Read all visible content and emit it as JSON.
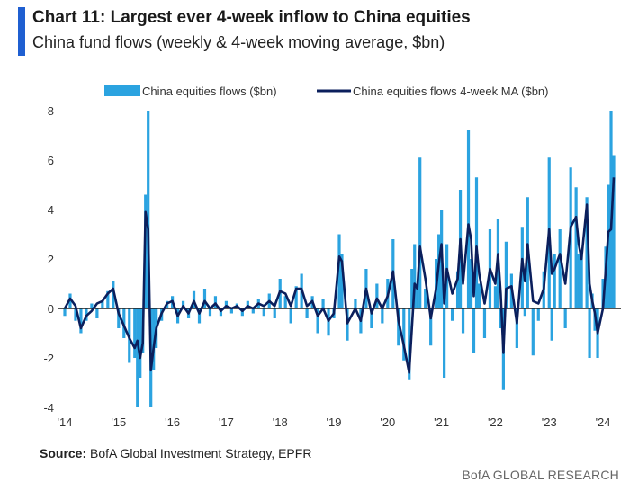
{
  "header": {
    "title": "Chart 11: Largest ever 4-week inflow to China equities",
    "subtitle": "China fund flows (weekly & 4-week moving average, $bn)"
  },
  "footer": {
    "source_label": "Source:",
    "source_text": "BofA Global Investment Strategy, EPFR",
    "brand": "BofA GLOBAL RESEARCH"
  },
  "colors": {
    "weekly_bars": "#2ba3e0",
    "ma_line": "#0b1f5c",
    "accent": "#1f5fd1"
  },
  "chart_data": {
    "type": "bar",
    "legend_position": "top",
    "grid": false,
    "ylim": [
      -4,
      8
    ],
    "yticks": [
      8,
      6,
      4,
      2,
      0,
      -2,
      -4
    ],
    "xlim": [
      2014.0,
      2024.2
    ],
    "xticks": [
      {
        "value": 2014,
        "label": "'14"
      },
      {
        "value": 2015,
        "label": "'15"
      },
      {
        "value": 2016,
        "label": "'16"
      },
      {
        "value": 2017,
        "label": "'17"
      },
      {
        "value": 2018,
        "label": "'18"
      },
      {
        "value": 2019,
        "label": "'19"
      },
      {
        "value": 2020,
        "label": "'20"
      },
      {
        "value": 2021,
        "label": "'21"
      },
      {
        "value": 2022,
        "label": "'22"
      },
      {
        "value": 2023,
        "label": "'23"
      },
      {
        "value": 2024,
        "label": "'24"
      }
    ],
    "series": [
      {
        "name": "China equities flows ($bn)",
        "type": "bar",
        "color": "#2ba3e0",
        "points": [
          [
            2014.0,
            -0.3
          ],
          [
            2014.1,
            0.6
          ],
          [
            2014.2,
            -0.5
          ],
          [
            2014.3,
            -1.0
          ],
          [
            2014.4,
            -0.5
          ],
          [
            2014.5,
            0.2
          ],
          [
            2014.6,
            -0.4
          ],
          [
            2014.7,
            0.3
          ],
          [
            2014.8,
            0.7
          ],
          [
            2014.9,
            1.1
          ],
          [
            2015.0,
            -0.8
          ],
          [
            2015.1,
            -1.2
          ],
          [
            2015.2,
            -2.2
          ],
          [
            2015.3,
            -2.0
          ],
          [
            2015.35,
            -4.0
          ],
          [
            2015.4,
            -2.8
          ],
          [
            2015.45,
            -1.8
          ],
          [
            2015.5,
            4.6
          ],
          [
            2015.55,
            8.0
          ],
          [
            2015.6,
            -4.0
          ],
          [
            2015.65,
            -2.5
          ],
          [
            2015.7,
            -1.6
          ],
          [
            2015.8,
            -0.5
          ],
          [
            2015.9,
            0.3
          ],
          [
            2016.0,
            0.5
          ],
          [
            2016.1,
            -0.6
          ],
          [
            2016.2,
            0.3
          ],
          [
            2016.3,
            -0.4
          ],
          [
            2016.4,
            0.7
          ],
          [
            2016.5,
            -0.6
          ],
          [
            2016.6,
            0.8
          ],
          [
            2016.7,
            -0.3
          ],
          [
            2016.8,
            0.5
          ],
          [
            2016.9,
            -0.3
          ],
          [
            2017.0,
            0.3
          ],
          [
            2017.1,
            -0.2
          ],
          [
            2017.2,
            0.2
          ],
          [
            2017.3,
            -0.3
          ],
          [
            2017.4,
            0.3
          ],
          [
            2017.5,
            -0.2
          ],
          [
            2017.6,
            0.4
          ],
          [
            2017.7,
            -0.3
          ],
          [
            2017.8,
            0.6
          ],
          [
            2017.9,
            -0.4
          ],
          [
            2018.0,
            1.2
          ],
          [
            2018.1,
            0.5
          ],
          [
            2018.2,
            -0.6
          ],
          [
            2018.3,
            0.9
          ],
          [
            2018.4,
            1.4
          ],
          [
            2018.5,
            -0.4
          ],
          [
            2018.6,
            0.5
          ],
          [
            2018.7,
            -1.0
          ],
          [
            2018.8,
            0.4
          ],
          [
            2018.9,
            -1.1
          ],
          [
            2019.0,
            -0.4
          ],
          [
            2019.1,
            3.0
          ],
          [
            2019.15,
            2.2
          ],
          [
            2019.25,
            -1.3
          ],
          [
            2019.4,
            0.4
          ],
          [
            2019.5,
            -1.0
          ],
          [
            2019.6,
            1.6
          ],
          [
            2019.7,
            -0.8
          ],
          [
            2019.8,
            1.0
          ],
          [
            2019.9,
            -0.6
          ],
          [
            2020.0,
            1.2
          ],
          [
            2020.1,
            2.8
          ],
          [
            2020.2,
            -1.5
          ],
          [
            2020.3,
            -2.1
          ],
          [
            2020.4,
            -2.9
          ],
          [
            2020.45,
            1.6
          ],
          [
            2020.5,
            2.6
          ],
          [
            2020.55,
            1.0
          ],
          [
            2020.6,
            6.1
          ],
          [
            2020.7,
            0.8
          ],
          [
            2020.8,
            -1.5
          ],
          [
            2020.9,
            2.0
          ],
          [
            2020.95,
            3.0
          ],
          [
            2021.0,
            4.0
          ],
          [
            2021.05,
            -2.8
          ],
          [
            2021.1,
            2.6
          ],
          [
            2021.2,
            -0.5
          ],
          [
            2021.3,
            1.5
          ],
          [
            2021.35,
            4.8
          ],
          [
            2021.4,
            -1.0
          ],
          [
            2021.5,
            7.2
          ],
          [
            2021.55,
            2.0
          ],
          [
            2021.6,
            -1.8
          ],
          [
            2021.65,
            5.3
          ],
          [
            2021.7,
            1.0
          ],
          [
            2021.8,
            -1.2
          ],
          [
            2021.9,
            3.2
          ],
          [
            2022.0,
            0.9
          ],
          [
            2022.05,
            3.6
          ],
          [
            2022.1,
            -0.8
          ],
          [
            2022.15,
            -3.3
          ],
          [
            2022.2,
            2.7
          ],
          [
            2022.3,
            1.4
          ],
          [
            2022.4,
            -1.6
          ],
          [
            2022.5,
            3.3
          ],
          [
            2022.55,
            -0.3
          ],
          [
            2022.6,
            4.5
          ],
          [
            2022.7,
            -1.9
          ],
          [
            2022.8,
            -0.5
          ],
          [
            2022.9,
            1.5
          ],
          [
            2023.0,
            6.1
          ],
          [
            2023.05,
            -1.3
          ],
          [
            2023.1,
            2.2
          ],
          [
            2023.2,
            3.2
          ],
          [
            2023.3,
            -0.8
          ],
          [
            2023.4,
            5.7
          ],
          [
            2023.5,
            4.9
          ],
          [
            2023.55,
            2.2
          ],
          [
            2023.6,
            2.3
          ],
          [
            2023.7,
            4.5
          ],
          [
            2023.75,
            -2.0
          ],
          [
            2023.8,
            0.6
          ],
          [
            2023.85,
            -0.9
          ],
          [
            2023.9,
            -2.0
          ],
          [
            2024.0,
            1.2
          ],
          [
            2024.05,
            2.5
          ],
          [
            2024.1,
            5.0
          ],
          [
            2024.15,
            8.0
          ],
          [
            2024.2,
            6.2
          ]
        ]
      },
      {
        "name": "China equities flows 4-week MA ($bn)",
        "type": "line",
        "color": "#0b1f5c",
        "points": [
          [
            2014.0,
            0.0
          ],
          [
            2014.1,
            0.4
          ],
          [
            2014.2,
            0.1
          ],
          [
            2014.3,
            -0.8
          ],
          [
            2014.4,
            -0.3
          ],
          [
            2014.5,
            -0.1
          ],
          [
            2014.6,
            0.2
          ],
          [
            2014.7,
            0.3
          ],
          [
            2014.8,
            0.6
          ],
          [
            2014.9,
            0.8
          ],
          [
            2015.0,
            -0.2
          ],
          [
            2015.1,
            -0.7
          ],
          [
            2015.2,
            -1.2
          ],
          [
            2015.3,
            -1.6
          ],
          [
            2015.35,
            -1.3
          ],
          [
            2015.4,
            -2.0
          ],
          [
            2015.45,
            -1.4
          ],
          [
            2015.5,
            3.9
          ],
          [
            2015.55,
            3.2
          ],
          [
            2015.6,
            -2.5
          ],
          [
            2015.65,
            -1.6
          ],
          [
            2015.7,
            -0.8
          ],
          [
            2015.8,
            -0.2
          ],
          [
            2015.9,
            0.2
          ],
          [
            2016.0,
            0.3
          ],
          [
            2016.1,
            -0.3
          ],
          [
            2016.2,
            0.1
          ],
          [
            2016.3,
            -0.2
          ],
          [
            2016.4,
            0.3
          ],
          [
            2016.5,
            -0.2
          ],
          [
            2016.6,
            0.3
          ],
          [
            2016.7,
            0.0
          ],
          [
            2016.8,
            0.2
          ],
          [
            2016.9,
            -0.1
          ],
          [
            2017.0,
            0.1
          ],
          [
            2017.1,
            0.0
          ],
          [
            2017.2,
            0.1
          ],
          [
            2017.3,
            -0.1
          ],
          [
            2017.4,
            0.1
          ],
          [
            2017.5,
            0.0
          ],
          [
            2017.6,
            0.2
          ],
          [
            2017.7,
            0.1
          ],
          [
            2017.8,
            0.3
          ],
          [
            2017.9,
            0.1
          ],
          [
            2018.0,
            0.7
          ],
          [
            2018.1,
            0.6
          ],
          [
            2018.2,
            0.1
          ],
          [
            2018.3,
            0.8
          ],
          [
            2018.4,
            0.8
          ],
          [
            2018.5,
            0.1
          ],
          [
            2018.6,
            0.3
          ],
          [
            2018.7,
            -0.3
          ],
          [
            2018.8,
            0.0
          ],
          [
            2018.9,
            -0.5
          ],
          [
            2019.0,
            -0.2
          ],
          [
            2019.1,
            2.1
          ],
          [
            2019.15,
            1.9
          ],
          [
            2019.25,
            -0.6
          ],
          [
            2019.4,
            0.0
          ],
          [
            2019.5,
            -0.5
          ],
          [
            2019.6,
            0.8
          ],
          [
            2019.7,
            -0.2
          ],
          [
            2019.8,
            0.4
          ],
          [
            2019.9,
            0.0
          ],
          [
            2020.0,
            0.5
          ],
          [
            2020.1,
            1.5
          ],
          [
            2020.2,
            -0.5
          ],
          [
            2020.3,
            -1.5
          ],
          [
            2020.4,
            -2.6
          ],
          [
            2020.45,
            -0.8
          ],
          [
            2020.5,
            1.0
          ],
          [
            2020.55,
            0.8
          ],
          [
            2020.6,
            2.5
          ],
          [
            2020.7,
            1.2
          ],
          [
            2020.8,
            -0.4
          ],
          [
            2020.9,
            0.8
          ],
          [
            2020.95,
            1.8
          ],
          [
            2021.0,
            2.6
          ],
          [
            2021.05,
            0.2
          ],
          [
            2021.1,
            1.6
          ],
          [
            2021.2,
            0.6
          ],
          [
            2021.3,
            1.2
          ],
          [
            2021.35,
            2.8
          ],
          [
            2021.4,
            1.0
          ],
          [
            2021.5,
            3.4
          ],
          [
            2021.55,
            2.8
          ],
          [
            2021.6,
            0.5
          ],
          [
            2021.65,
            2.5
          ],
          [
            2021.7,
            1.4
          ],
          [
            2021.8,
            0.2
          ],
          [
            2021.9,
            1.6
          ],
          [
            2022.0,
            1.0
          ],
          [
            2022.05,
            2.2
          ],
          [
            2022.1,
            0.6
          ],
          [
            2022.15,
            -1.8
          ],
          [
            2022.2,
            0.8
          ],
          [
            2022.3,
            0.9
          ],
          [
            2022.4,
            -0.6
          ],
          [
            2022.5,
            2.0
          ],
          [
            2022.55,
            1.1
          ],
          [
            2022.6,
            2.6
          ],
          [
            2022.7,
            0.3
          ],
          [
            2022.8,
            0.2
          ],
          [
            2022.9,
            0.8
          ],
          [
            2023.0,
            3.2
          ],
          [
            2023.05,
            1.4
          ],
          [
            2023.1,
            1.6
          ],
          [
            2023.2,
            2.2
          ],
          [
            2023.3,
            1.0
          ],
          [
            2023.4,
            3.3
          ],
          [
            2023.5,
            3.7
          ],
          [
            2023.55,
            2.6
          ],
          [
            2023.6,
            2.0
          ],
          [
            2023.7,
            4.2
          ],
          [
            2023.75,
            1.0
          ],
          [
            2023.8,
            0.3
          ],
          [
            2023.85,
            -0.2
          ],
          [
            2023.9,
            -1.0
          ],
          [
            2024.0,
            0.0
          ],
          [
            2024.05,
            1.5
          ],
          [
            2024.1,
            3.1
          ],
          [
            2024.15,
            3.2
          ],
          [
            2024.2,
            5.3
          ]
        ]
      }
    ]
  }
}
